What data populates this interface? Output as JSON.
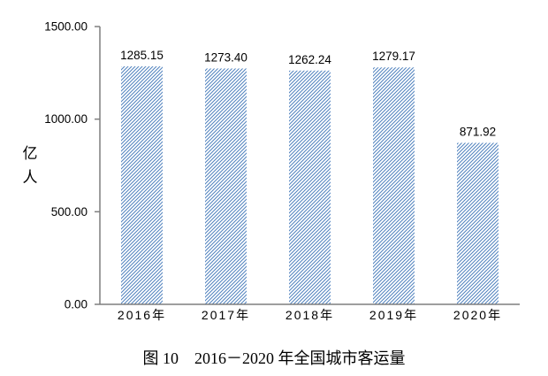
{
  "figure": {
    "caption": "图 10　2016－2020 年全国城市客运量",
    "unit_label_lines": [
      "亿",
      "人"
    ]
  },
  "chart_data": {
    "type": "bar",
    "title": "图 10　2016－2020 年全国城市客运量",
    "categories": [
      "2016年",
      "2017年",
      "2018年",
      "2019年",
      "2020年"
    ],
    "values": [
      1285.15,
      1273.4,
      1262.24,
      1279.17,
      871.92
    ],
    "value_labels": [
      "1285.15",
      "1273.40",
      "1262.24",
      "1279.17",
      "871.92"
    ],
    "xlabel": "",
    "ylabel": "亿人",
    "ylim": [
      0,
      1500
    ],
    "yticks": [
      0,
      500,
      1000,
      1500
    ],
    "ytick_labels": [
      "0.00",
      "500.00",
      "1000.00",
      "1500.00"
    ],
    "grid": false,
    "legend": null,
    "style": {
      "bar_fill": "diagonal-hatch",
      "hatch_color": "#4f81bd",
      "bar_background": "#ffffff",
      "axis_color": "#7f7f7f",
      "text_color": "#000000"
    }
  }
}
